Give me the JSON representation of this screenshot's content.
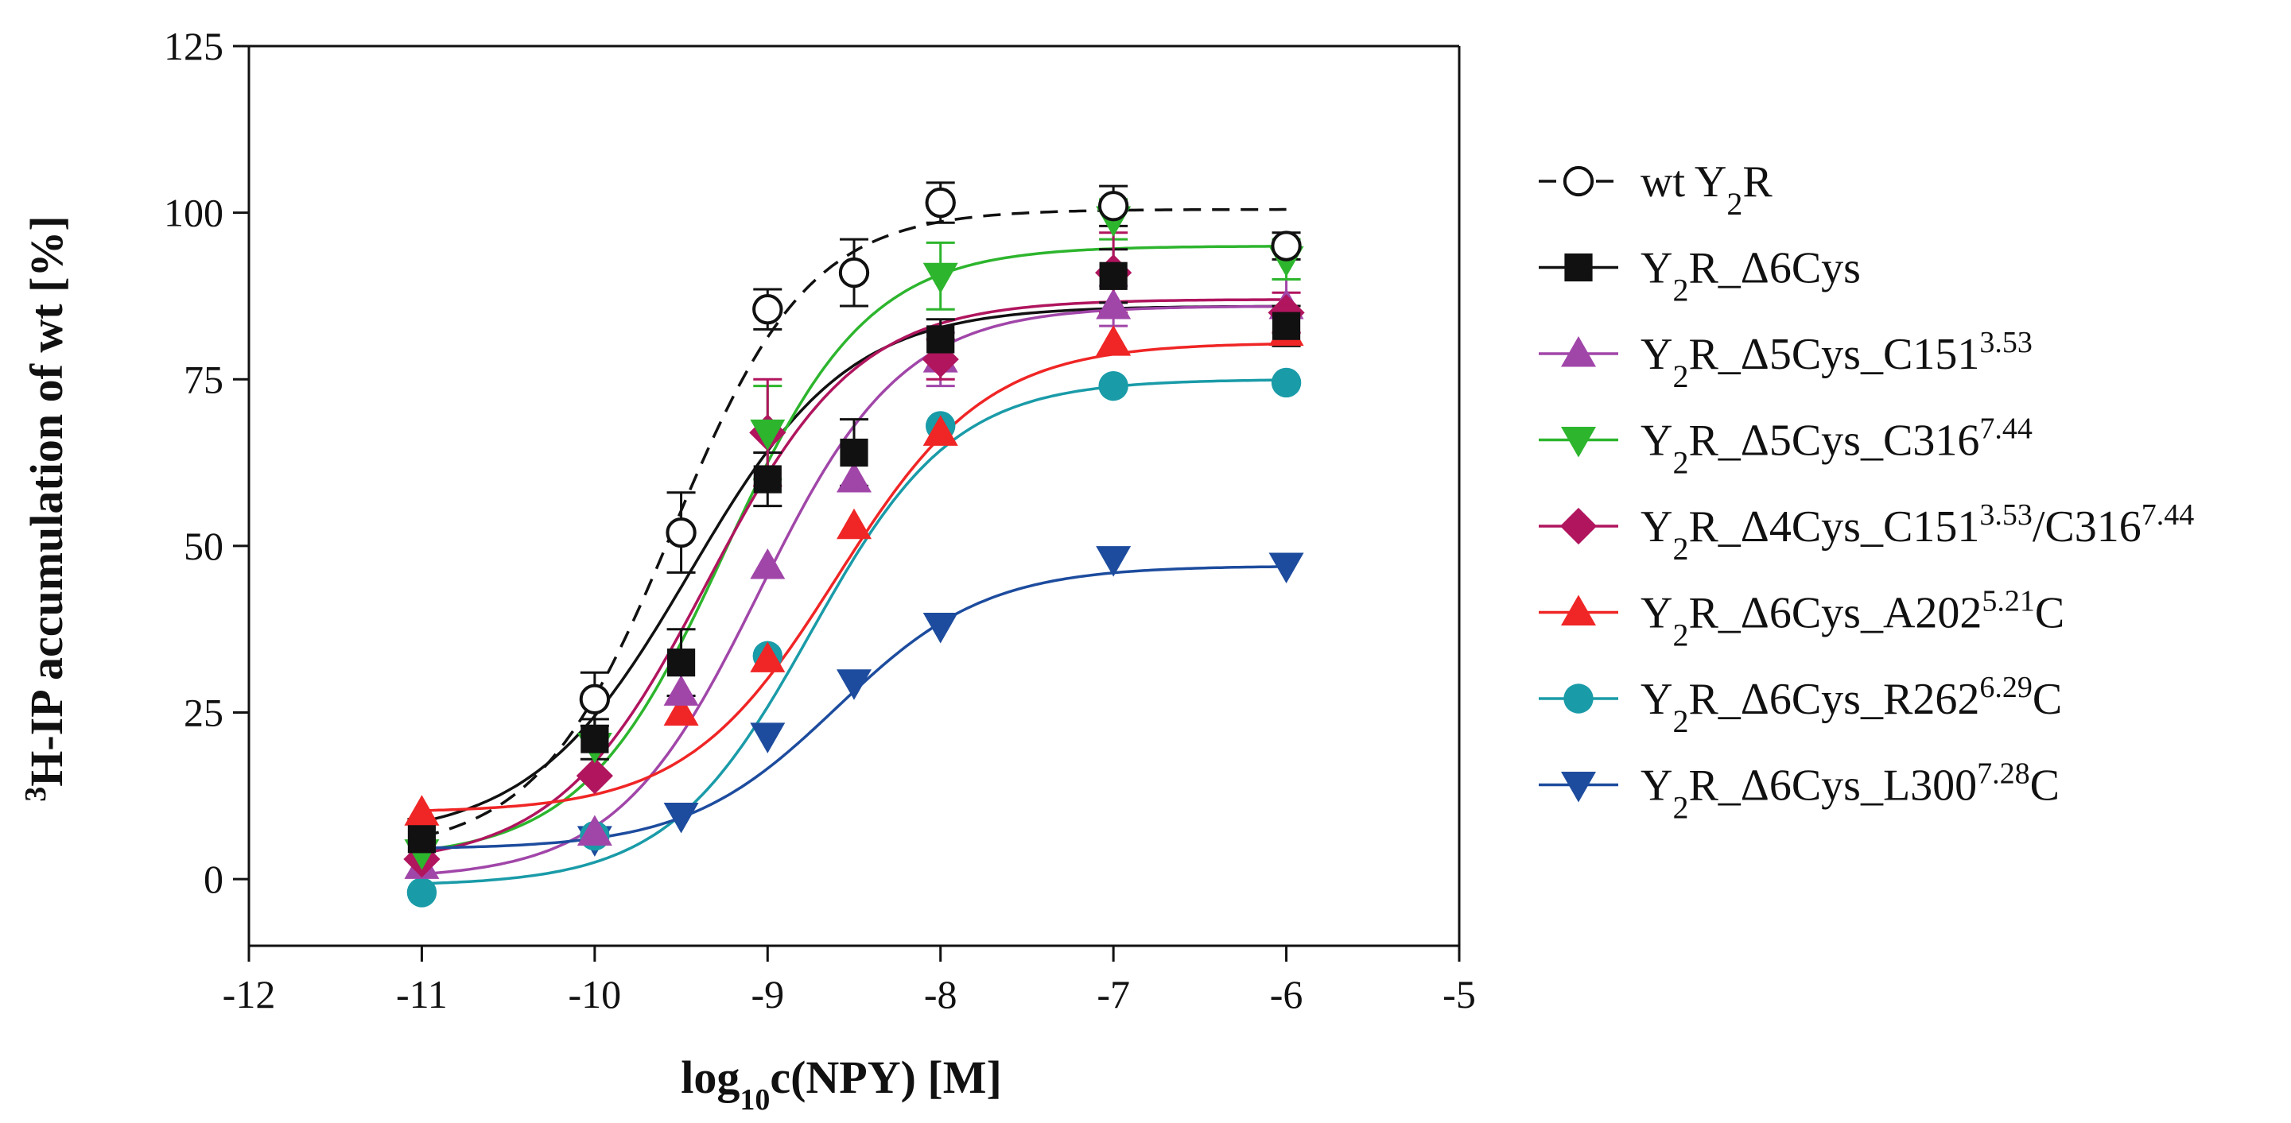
{
  "chart_data": {
    "type": "scatter",
    "title": "",
    "xlabel": {
      "pre": "log",
      "sub": "10",
      "post": "c(NPY) [M]"
    },
    "ylabel": {
      "sup": "3",
      "post": "H-IP accumulation of wt  [%]"
    },
    "xlim": [
      -12,
      -5
    ],
    "ylim": [
      -10,
      125
    ],
    "xticks": [
      -12,
      -11,
      -10,
      -9,
      -8,
      -7,
      -6,
      -5
    ],
    "xtick_labels": [
      "-12",
      "-11",
      "-10",
      "-9",
      "-8",
      "-7",
      "-6",
      "-5"
    ],
    "yticks": [
      0,
      25,
      50,
      75,
      100,
      125
    ],
    "ytick_labels": [
      "0",
      "25",
      "50",
      "75",
      "100",
      "125"
    ],
    "grid": false,
    "legend_position": "right",
    "x": [
      -11,
      -10,
      -9.5,
      -9,
      -8.5,
      -8,
      -7,
      -6
    ],
    "series": [
      {
        "name": "wt Y2R",
        "label": {
          "pre": "wt Y",
          "sub": "2",
          "mid": "R",
          "sup": "",
          "post": ""
        },
        "color": "#111111",
        "marker": "circle-open",
        "curve_style": "dashed",
        "values": [
          null,
          27,
          52,
          85.5,
          91,
          101.5,
          101,
          95
        ],
        "errors": [
          null,
          4,
          6,
          3,
          5,
          3,
          3,
          2
        ],
        "fit": {
          "bottom": 4,
          "top": 100.5,
          "logec50": -9.55,
          "hill": 1.1
        }
      },
      {
        "name": "Y2R_Δ6Cys",
        "label": {
          "pre": "Y",
          "sub": "2",
          "mid": "R_Δ6Cys",
          "sup": "",
          "post": ""
        },
        "color": "#111111",
        "marker": "square",
        "curve_style": "solid",
        "values": [
          6,
          21,
          32.5,
          60,
          64,
          81,
          90.5,
          83
        ],
        "errors": [
          3,
          3,
          5,
          4,
          5,
          3,
          4,
          3
        ],
        "fit": {
          "bottom": 6,
          "top": 86,
          "logec50": -9.45,
          "hill": 0.95
        }
      },
      {
        "name": "Y2R_Δ5Cys_C151 3.53",
        "label": {
          "pre": "Y",
          "sub": "2",
          "mid": "R_Δ5Cys_C151",
          "sup": "3.53",
          "post": ""
        },
        "color": "#A146A9",
        "marker": "triangle-up",
        "curve_style": "solid",
        "values": [
          2,
          7,
          28,
          47,
          60,
          78,
          86,
          86
        ],
        "errors": [
          null,
          null,
          null,
          null,
          null,
          4,
          3,
          4
        ],
        "fit": {
          "bottom": 0,
          "top": 86,
          "logec50": -9.05,
          "hill": 1.05
        }
      },
      {
        "name": "Y2R_Δ5Cys_C316 7.44",
        "label": {
          "pre": "Y",
          "sub": "2",
          "mid": "R_Δ5Cys_C316",
          "sup": "7.44",
          "post": ""
        },
        "color": "#2DB52D",
        "marker": "triangle-down",
        "curve_style": "solid",
        "values": [
          4,
          20,
          null,
          67,
          null,
          90.5,
          99,
          93
        ],
        "errors": [
          null,
          null,
          null,
          7,
          null,
          5,
          3,
          3
        ],
        "fit": {
          "bottom": 3,
          "top": 95,
          "logec50": -9.25,
          "hill": 1.05
        }
      },
      {
        "name": "Y2R_Δ4Cys_C151 3.53/C316 7.44",
        "label": {
          "pre": "Y",
          "sub": "2",
          "mid": "R_Δ4Cys_C151",
          "sup": "3.53",
          "post": "/C316",
          "sup2": "7.44"
        },
        "color": "#B0155E",
        "marker": "diamond",
        "curve_style": "solid",
        "values": [
          3,
          15.5,
          null,
          67,
          null,
          78,
          91,
          85
        ],
        "errors": [
          null,
          null,
          null,
          8,
          null,
          3,
          6,
          3
        ],
        "fit": {
          "bottom": 2,
          "top": 87,
          "logec50": -9.35,
          "hill": 1.0
        }
      },
      {
        "name": "Y2R_Δ6Cys_A202 5.21C",
        "label": {
          "pre": "Y",
          "sub": "2",
          "mid": "R_Δ6Cys_A202",
          "sup": "5.21",
          "post": "C"
        },
        "color": "#F02525",
        "marker": "triangle-up",
        "curve_style": "solid",
        "values": [
          10,
          null,
          25,
          33,
          53,
          67,
          80.5,
          82
        ],
        "errors": [
          null,
          null,
          null,
          null,
          null,
          null,
          null,
          null
        ],
        "fit": {
          "bottom": 10,
          "top": 80.5,
          "logec50": -8.6,
          "hill": 1.0
        }
      },
      {
        "name": "Y2R_Δ6Cys_R262 6.29C",
        "label": {
          "pre": "Y",
          "sub": "2",
          "mid": "R_Δ6Cys_R262",
          "sup": "6.29",
          "post": "C"
        },
        "color": "#1A9BA8",
        "marker": "circle",
        "curve_style": "solid",
        "values": [
          -2,
          6.5,
          null,
          33.5,
          null,
          68,
          74,
          74.5
        ],
        "errors": [
          null,
          null,
          null,
          null,
          null,
          null,
          null,
          null
        ],
        "fit": {
          "bottom": -1,
          "top": 75,
          "logec50": -8.75,
          "hill": 1.05
        }
      },
      {
        "name": "Y2R_Δ6Cys_L300 7.28C",
        "label": {
          "pre": "Y",
          "sub": "2",
          "mid": "R_Δ6Cys_L300",
          "sup": "7.28",
          "post": "C"
        },
        "color": "#1D4C9E",
        "marker": "triangle-down",
        "curve_style": "solid",
        "values": [
          null,
          6,
          9.5,
          21.5,
          29.5,
          38,
          48,
          47
        ],
        "errors": [
          null,
          null,
          null,
          null,
          null,
          null,
          null,
          null
        ],
        "fit": {
          "bottom": 4.5,
          "top": 47,
          "logec50": -8.6,
          "hill": 1.0
        }
      }
    ]
  }
}
